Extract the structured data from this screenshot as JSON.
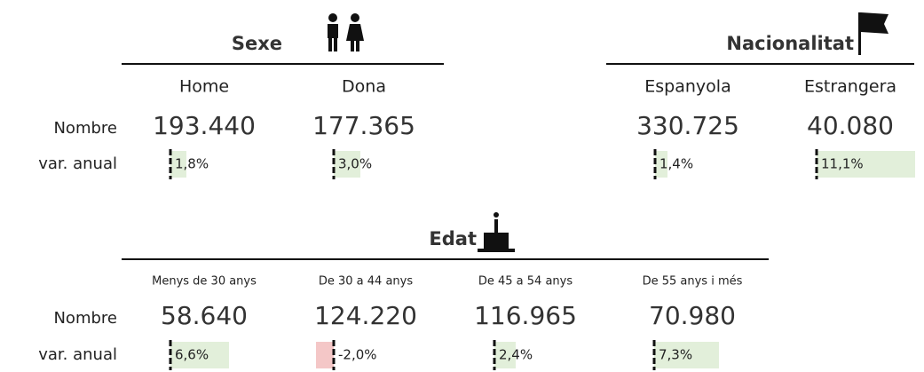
{
  "row_labels": {
    "nombre": "Nombre",
    "var": "var. anual"
  },
  "positive_color": "#e2efda",
  "negative_color": "#f4c7c7",
  "sections": [
    {
      "title": "Sexe",
      "columns": [
        {
          "label": "Home",
          "nombre": "193.440",
          "var": {
            "value": 1.8,
            "label": "1,8%"
          }
        },
        {
          "label": "Dona",
          "nombre": "177.365",
          "var": {
            "value": 3.0,
            "label": "3,0%"
          }
        }
      ]
    },
    {
      "title": "Nacionalitat",
      "columns": [
        {
          "label": "Espanyola",
          "nombre": "330.725",
          "var": {
            "value": 1.4,
            "label": "1,4%"
          }
        },
        {
          "label": "Estrangera",
          "nombre": "40.080",
          "var": {
            "value": 11.1,
            "label": "11,1%"
          }
        }
      ]
    },
    {
      "title": "Edat",
      "columns": [
        {
          "label": "Menys de 30 anys",
          "nombre": "58.640",
          "var": {
            "value": 6.6,
            "label": "6,6%"
          }
        },
        {
          "label": "De 30 a 44 anys",
          "nombre": "124.220",
          "var": {
            "value": -2.0,
            "label": "-2,0%"
          }
        },
        {
          "label": "De 45 a 54 anys",
          "nombre": "116.965",
          "var": {
            "value": 2.4,
            "label": "2,4%"
          }
        },
        {
          "label": "De 55 anys i més",
          "nombre": "70.980",
          "var": {
            "value": 7.3,
            "label": "7,3%"
          }
        }
      ]
    }
  ]
}
